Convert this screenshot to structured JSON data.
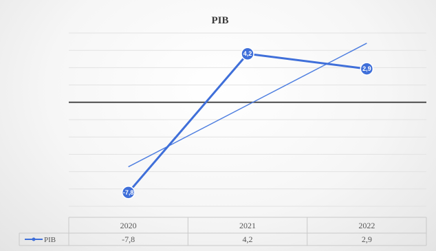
{
  "chart_data": {
    "type": "line",
    "title": "PIB",
    "categories": [
      "2020",
      "2021",
      "2022"
    ],
    "series": [
      {
        "name": "PIB",
        "values": [
          -7.8,
          4.2,
          2.9
        ],
        "value_labels": [
          "-7,8",
          "4,2",
          "2,9"
        ],
        "color": "#3f6fd9"
      }
    ],
    "trendline": {
      "type": "linear",
      "series": "PIB",
      "color": "#4f7fe0"
    },
    "data_table": true,
    "legend": "data-table-left",
    "grid": true,
    "ylim": [
      -9,
      6
    ]
  }
}
